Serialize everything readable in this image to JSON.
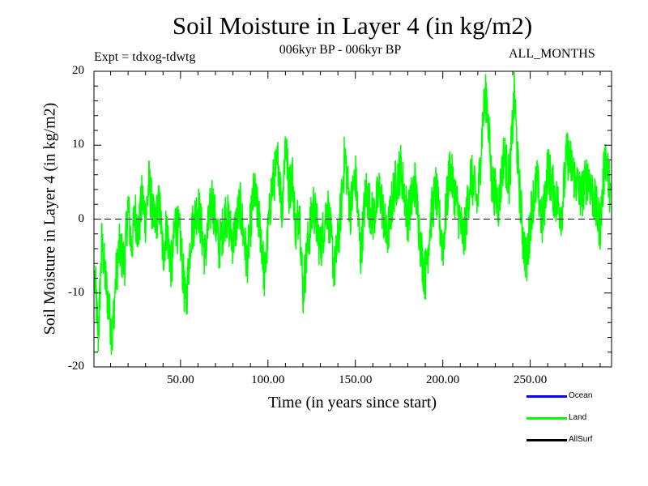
{
  "chart_data": {
    "type": "line",
    "title": "Soil Moisture in Layer 4 (in kg/m2)",
    "subtitle": "006kyr BP - 006kyr BP",
    "experiment": "Expt = tdxog-tdwtg",
    "period": "ALL_MONTHS",
    "xlabel": "Time (in years since start)",
    "ylabel": "Soil Moisture in Layer 4 (in kg/m2)",
    "xlim": [
      0.5,
      296.5
    ],
    "ylim": [
      -20,
      20
    ],
    "x_ticks": [
      {
        "value": 50,
        "label": "50.00"
      },
      {
        "value": 100,
        "label": "100.00"
      },
      {
        "value": 150,
        "label": "150.00"
      },
      {
        "value": 200,
        "label": "200.00"
      },
      {
        "value": 250,
        "label": "250.00"
      }
    ],
    "y_ticks": [
      {
        "value": 20,
        "label": "20"
      },
      {
        "value": 10,
        "label": "10"
      },
      {
        "value": 0,
        "label": "0"
      },
      {
        "value": -10,
        "label": "-10"
      },
      {
        "value": -20,
        "label": "-20"
      }
    ],
    "zero_line": "dashed",
    "grid": false,
    "legend_position": "bottom-right",
    "legend": [
      {
        "name": "Ocean",
        "color": "#0000ff"
      },
      {
        "name": "Land",
        "color": "#00ff00"
      },
      {
        "name": "AllSurf",
        "color": "#000000"
      }
    ],
    "series": [
      {
        "name": "Land",
        "color": "#00ff00",
        "x_start": 1,
        "x_end": 296,
        "anchors": [
          [
            1,
            -8
          ],
          [
            3,
            -16
          ],
          [
            5,
            -3
          ],
          [
            7,
            -8
          ],
          [
            9,
            -12
          ],
          [
            11,
            -16
          ],
          [
            13,
            -8
          ],
          [
            15,
            -4
          ],
          [
            18,
            -6
          ],
          [
            20,
            2
          ],
          [
            22,
            -4
          ],
          [
            24,
            1
          ],
          [
            26,
            -2
          ],
          [
            28,
            3
          ],
          [
            30,
            0
          ],
          [
            32,
            5
          ],
          [
            35,
            -1
          ],
          [
            38,
            2
          ],
          [
            40,
            -5
          ],
          [
            42,
            -1
          ],
          [
            45,
            -7
          ],
          [
            47,
            0
          ],
          [
            50,
            -3
          ],
          [
            53,
            -12
          ],
          [
            56,
            -2
          ],
          [
            60,
            2
          ],
          [
            64,
            -5
          ],
          [
            68,
            3
          ],
          [
            72,
            -4
          ],
          [
            76,
            1
          ],
          [
            80,
            -3
          ],
          [
            84,
            2
          ],
          [
            88,
            -6
          ],
          [
            92,
            4
          ],
          [
            96,
            -2
          ],
          [
            98,
            -8
          ],
          [
            102,
            4
          ],
          [
            106,
            8
          ],
          [
            108,
            1
          ],
          [
            110,
            11
          ],
          [
            112,
            4
          ],
          [
            114,
            6
          ],
          [
            116,
            -2
          ],
          [
            118,
            2
          ],
          [
            120,
            -10
          ],
          [
            123,
            -3
          ],
          [
            126,
            2
          ],
          [
            130,
            -4
          ],
          [
            134,
            2
          ],
          [
            138,
            -7
          ],
          [
            141,
            -1
          ],
          [
            144,
            9
          ],
          [
            147,
            1
          ],
          [
            150,
            6
          ],
          [
            153,
            -5
          ],
          [
            156,
            4
          ],
          [
            160,
            0
          ],
          [
            164,
            4
          ],
          [
            168,
            -3
          ],
          [
            172,
            4
          ],
          [
            176,
            7
          ],
          [
            180,
            0
          ],
          [
            184,
            5
          ],
          [
            188,
            -5
          ],
          [
            190,
            -8
          ],
          [
            193,
            0
          ],
          [
            196,
            4
          ],
          [
            200,
            -4
          ],
          [
            204,
            7
          ],
          [
            208,
            2
          ],
          [
            212,
            -3
          ],
          [
            216,
            6
          ],
          [
            220,
            2
          ],
          [
            223,
            14
          ],
          [
            225,
            17
          ],
          [
            228,
            5
          ],
          [
            232,
            2
          ],
          [
            235,
            9
          ],
          [
            238,
            5
          ],
          [
            241,
            17
          ],
          [
            243,
            7
          ],
          [
            246,
            -3
          ],
          [
            248,
            -6
          ],
          [
            251,
            2
          ],
          [
            254,
            5
          ],
          [
            257,
            -1
          ],
          [
            260,
            7
          ],
          [
            264,
            3
          ],
          [
            268,
            1
          ],
          [
            271,
            9
          ],
          [
            275,
            6
          ],
          [
            279,
            3
          ],
          [
            283,
            6
          ],
          [
            287,
            2
          ],
          [
            290,
            -1
          ],
          [
            293,
            9
          ],
          [
            296,
            3
          ]
        ]
      }
    ]
  }
}
